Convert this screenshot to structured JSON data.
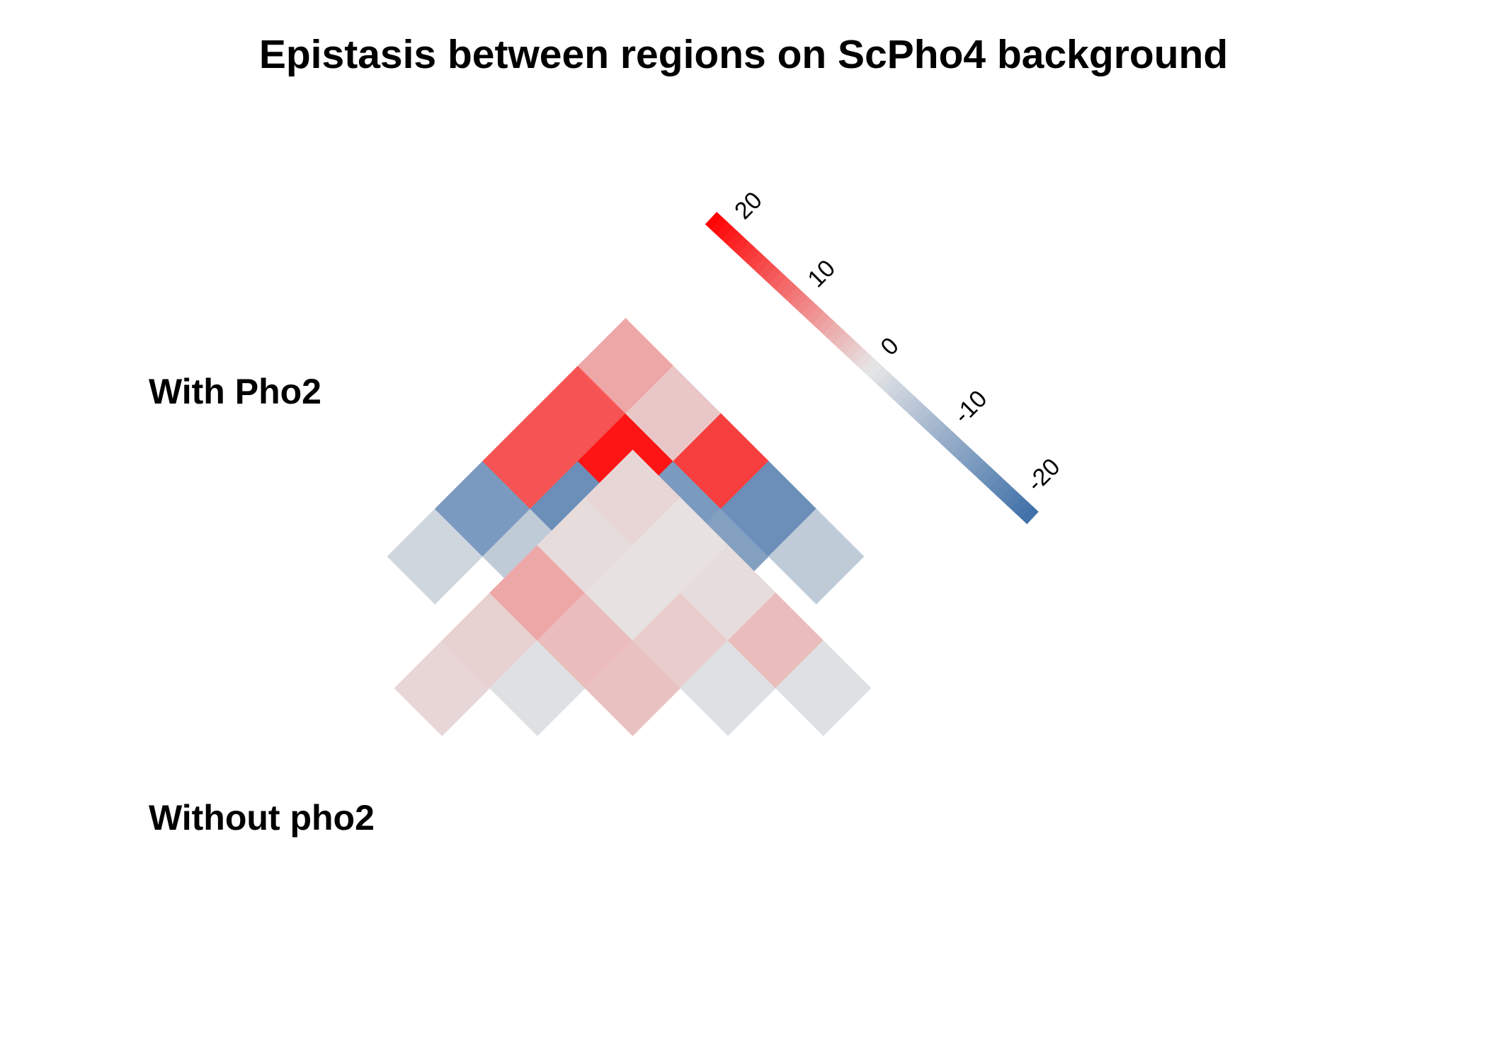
{
  "chart_data": {
    "type": "heatmap",
    "title": "Epistasis between regions on ScPho4 background",
    "panel_labels": [
      "With Pho2",
      "Without pho2"
    ],
    "colorbar": {
      "ticks": [
        20,
        10,
        0,
        -10,
        -20
      ],
      "tick_labels": [
        "20",
        "10",
        "0",
        "-10",
        "-20"
      ],
      "range": [
        -22,
        22
      ],
      "low_color": "#3E6FA8",
      "mid_color": "#E6E6E6",
      "high_color": "#FF0000"
    },
    "panels": [
      {
        "name": "With Pho2",
        "cells": [
          {
            "row": 0,
            "col": 1,
            "value": -3
          },
          {
            "row": 0,
            "col": 2,
            "value": -14
          },
          {
            "row": 0,
            "col": 3,
            "value": 14
          },
          {
            "row": 0,
            "col": 4,
            "value": 14
          },
          {
            "row": 0,
            "col": 5,
            "value": 6
          },
          {
            "row": 1,
            "col": 2,
            "value": -5
          },
          {
            "row": 1,
            "col": 3,
            "value": -16
          },
          {
            "row": 1,
            "col": 4,
            "value": 20
          },
          {
            "row": 1,
            "col": 5,
            "value": 3
          },
          {
            "row": 2,
            "col": 3,
            "value": -1
          },
          {
            "row": 2,
            "col": 4,
            "value": -14
          },
          {
            "row": 2,
            "col": 5,
            "value": 16
          },
          {
            "row": 3,
            "col": 4,
            "value": -13
          },
          {
            "row": 3,
            "col": 5,
            "value": -16
          },
          {
            "row": 4,
            "col": 5,
            "value": -5
          }
        ]
      },
      {
        "name": "Without pho2",
        "cells": [
          {
            "row": 0,
            "col": 1,
            "value": 1.5
          },
          {
            "row": 0,
            "col": 2,
            "value": 2
          },
          {
            "row": 0,
            "col": 3,
            "value": 6
          },
          {
            "row": 0,
            "col": 4,
            "value": 1
          },
          {
            "row": 0,
            "col": 5,
            "value": 1.5
          },
          {
            "row": 1,
            "col": 2,
            "value": -1
          },
          {
            "row": 1,
            "col": 3,
            "value": 4
          },
          {
            "row": 1,
            "col": 4,
            "value": 0.5
          },
          {
            "row": 1,
            "col": 5,
            "value": 0.5
          },
          {
            "row": 2,
            "col": 3,
            "value": 3.5
          },
          {
            "row": 2,
            "col": 4,
            "value": 2.5
          },
          {
            "row": 2,
            "col": 5,
            "value": 1
          },
          {
            "row": 3,
            "col": 4,
            "value": -1
          },
          {
            "row": 3,
            "col": 5,
            "value": 4
          },
          {
            "row": 4,
            "col": 5,
            "value": -1
          }
        ]
      }
    ]
  }
}
